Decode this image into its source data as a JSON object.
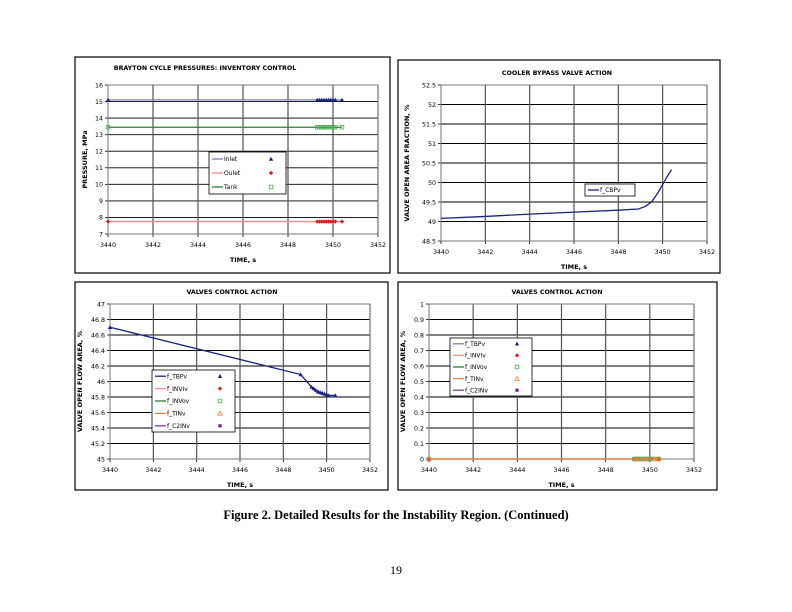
{
  "caption": "Figure 2. Detailed Results for the Instability Region. (Continued)",
  "page_number": "19",
  "chart_data": [
    {
      "type": "line",
      "title": "BRAYTON CYCLE PRESSURES: INVENTORY CONTROL",
      "xlabel": "TIME, s",
      "ylabel": "PRESSURE, MPa",
      "xlim": [
        3440,
        3452
      ],
      "xstep": 2,
      "ylim": [
        7,
        16
      ],
      "ystep": 1,
      "xticks": [
        "3440",
        "3442",
        "3444",
        "3446",
        "3448",
        "3450",
        "3452"
      ],
      "yticks": [
        "7",
        "8",
        "9",
        "10",
        "11",
        "12",
        "13",
        "14",
        "15",
        "16"
      ],
      "grid": true,
      "legend": "center",
      "series": [
        {
          "name": "Inlet",
          "color": "#7b7fc4",
          "marker": "triangle",
          "marker_color": "#1a237e",
          "x": [
            3440,
            3449.3,
            3449.4,
            3449.5,
            3449.6,
            3449.7,
            3449.8,
            3449.9,
            3450.0,
            3450.1,
            3450.4
          ],
          "y": [
            15.1,
            15.1,
            15.1,
            15.1,
            15.1,
            15.1,
            15.1,
            15.1,
            15.1,
            15.1,
            15.1
          ]
        },
        {
          "name": "Oulet",
          "color": "#f28a8a",
          "marker": "diamond",
          "marker_color": "#e02020",
          "x": [
            3440,
            3449.3,
            3449.4,
            3449.5,
            3449.6,
            3449.7,
            3449.8,
            3449.9,
            3450.0,
            3450.1,
            3450.4
          ],
          "y": [
            7.75,
            7.75,
            7.75,
            7.75,
            7.75,
            7.75,
            7.75,
            7.75,
            7.75,
            7.75,
            7.75
          ]
        },
        {
          "name": "Tank",
          "color": "#2e7d32",
          "marker": "square-open",
          "marker_color": "#4caf50",
          "x": [
            3440,
            3449.3,
            3449.4,
            3449.5,
            3449.6,
            3449.7,
            3449.8,
            3449.9,
            3450.0,
            3450.1,
            3450.4
          ],
          "y": [
            13.45,
            13.45,
            13.45,
            13.45,
            13.45,
            13.45,
            13.45,
            13.45,
            13.45,
            13.45,
            13.45
          ]
        }
      ]
    },
    {
      "type": "line",
      "title": "COOLER BYPASS VALVE ACTION",
      "xlabel": "TIME, s",
      "ylabel": "VALVE OPEN AREA FRACTION, %",
      "xlim": [
        3440,
        3452
      ],
      "xstep": 2,
      "ylim": [
        48.5,
        52.5
      ],
      "ystep": 0.5,
      "xticks": [
        "3440",
        "3442",
        "3444",
        "3446",
        "3448",
        "3450",
        "3452"
      ],
      "yticks": [
        "48.5",
        "49",
        "49.5",
        "50",
        "50.5",
        "51",
        "51.5",
        "52",
        "52.5"
      ],
      "grid": true,
      "legend": "center-right",
      "series": [
        {
          "name": "f_CBPv",
          "color": "#1a237e",
          "marker": "none",
          "x": [
            3440,
            3442,
            3444,
            3446,
            3448,
            3448.9,
            3449.2,
            3449.5,
            3449.8,
            3450.0,
            3450.2,
            3450.4
          ],
          "y": [
            49.08,
            49.13,
            49.19,
            49.24,
            49.29,
            49.32,
            49.38,
            49.5,
            49.75,
            49.95,
            50.15,
            50.33
          ]
        }
      ]
    },
    {
      "type": "line",
      "title": "VALVES CONTROL ACTION",
      "xlabel": "TIME, s",
      "ylabel": "VALVE OPEN FLOW AREA, %",
      "xlim": [
        3440,
        3452
      ],
      "xstep": 2,
      "ylim": [
        45,
        47
      ],
      "ystep": 0.2,
      "xticks": [
        "3440",
        "3442",
        "3444",
        "3446",
        "3448",
        "3450",
        "3452"
      ],
      "yticks": [
        "45",
        "45.2",
        "45.4",
        "45.6",
        "45.8",
        "46",
        "46.2",
        "46.4",
        "46.6",
        "46.8",
        "47"
      ],
      "grid": true,
      "legend": "center-left",
      "series": [
        {
          "name": "f_TBPv",
          "color": "#1a237e",
          "marker": "triangle",
          "marker_color": "#1a237e",
          "x": [
            3440,
            3448.8,
            3449.3,
            3449.4,
            3449.5,
            3449.6,
            3449.7,
            3449.8,
            3449.9,
            3450.0,
            3450.1,
            3450.4
          ],
          "y": [
            46.7,
            46.09,
            45.93,
            45.91,
            45.89,
            45.87,
            45.86,
            45.85,
            45.84,
            45.83,
            45.82,
            45.82
          ]
        },
        {
          "name": "f_INVIv",
          "color": "#f28a8a",
          "marker": "diamond",
          "marker_color": "#e02020",
          "x": [],
          "y": []
        },
        {
          "name": "f_INVov",
          "color": "#2e7d32",
          "marker": "square-open",
          "marker_color": "#4caf50",
          "x": [],
          "y": []
        },
        {
          "name": "f_TINv",
          "color": "#f08040",
          "marker": "triangle-open",
          "marker_color": "#f08040",
          "x": [],
          "y": []
        },
        {
          "name": "f_C2INv",
          "color": "#7b3f9e",
          "marker": "square",
          "marker_color": "#5e2a84",
          "x": [],
          "y": []
        }
      ]
    },
    {
      "type": "line",
      "title": "VALVES CONTROL ACTION",
      "xlabel": "TIME, s",
      "ylabel": "VALVE OPEN FLOW AREA, %",
      "xlim": [
        3440,
        3452
      ],
      "xstep": 2,
      "ylim": [
        0,
        1
      ],
      "ystep": 0.1,
      "xticks": [
        "3440",
        "3442",
        "3444",
        "3446",
        "3448",
        "3450",
        "3452"
      ],
      "yticks": [
        "0",
        "0.1",
        "0.2",
        "0.3",
        "0.4",
        "0.5",
        "0.6",
        "0.7",
        "0.8",
        "0.9",
        "1"
      ],
      "grid": true,
      "legend": "upper-left",
      "series": [
        {
          "name": "f_TBPv",
          "color": "#7b7fc4",
          "marker": "triangle",
          "marker_color": "#1a237e",
          "x": [],
          "y": []
        },
        {
          "name": "f_INVIv",
          "color": "#f28a8a",
          "marker": "diamond",
          "marker_color": "#e02020",
          "x": [
            3440,
            3449.3,
            3449.5,
            3449.7,
            3449.9,
            3450.1,
            3450.4
          ],
          "y": [
            0,
            0,
            0,
            0,
            0,
            0,
            0
          ]
        },
        {
          "name": "f_INVov",
          "color": "#2e7d32",
          "marker": "square-open",
          "marker_color": "#4caf50",
          "x": [
            3440,
            3449.3,
            3449.4,
            3449.5,
            3449.6,
            3449.7,
            3449.8,
            3449.9,
            3450.0,
            3450.2,
            3450.4
          ],
          "y": [
            0,
            0,
            0,
            0,
            0,
            0,
            0,
            0,
            0,
            0,
            0
          ]
        },
        {
          "name": "f_TINv",
          "color": "#f08040",
          "marker": "triangle-open",
          "marker_color": "#f08040",
          "x": [
            3440,
            3449.4,
            3449.8,
            3450.2,
            3450.4
          ],
          "y": [
            0,
            0,
            0,
            0,
            0
          ]
        },
        {
          "name": "f_C2INv",
          "color": "#7b3f9e",
          "marker": "square",
          "marker_color": "#5e2a84",
          "x": [],
          "y": []
        }
      ]
    }
  ]
}
